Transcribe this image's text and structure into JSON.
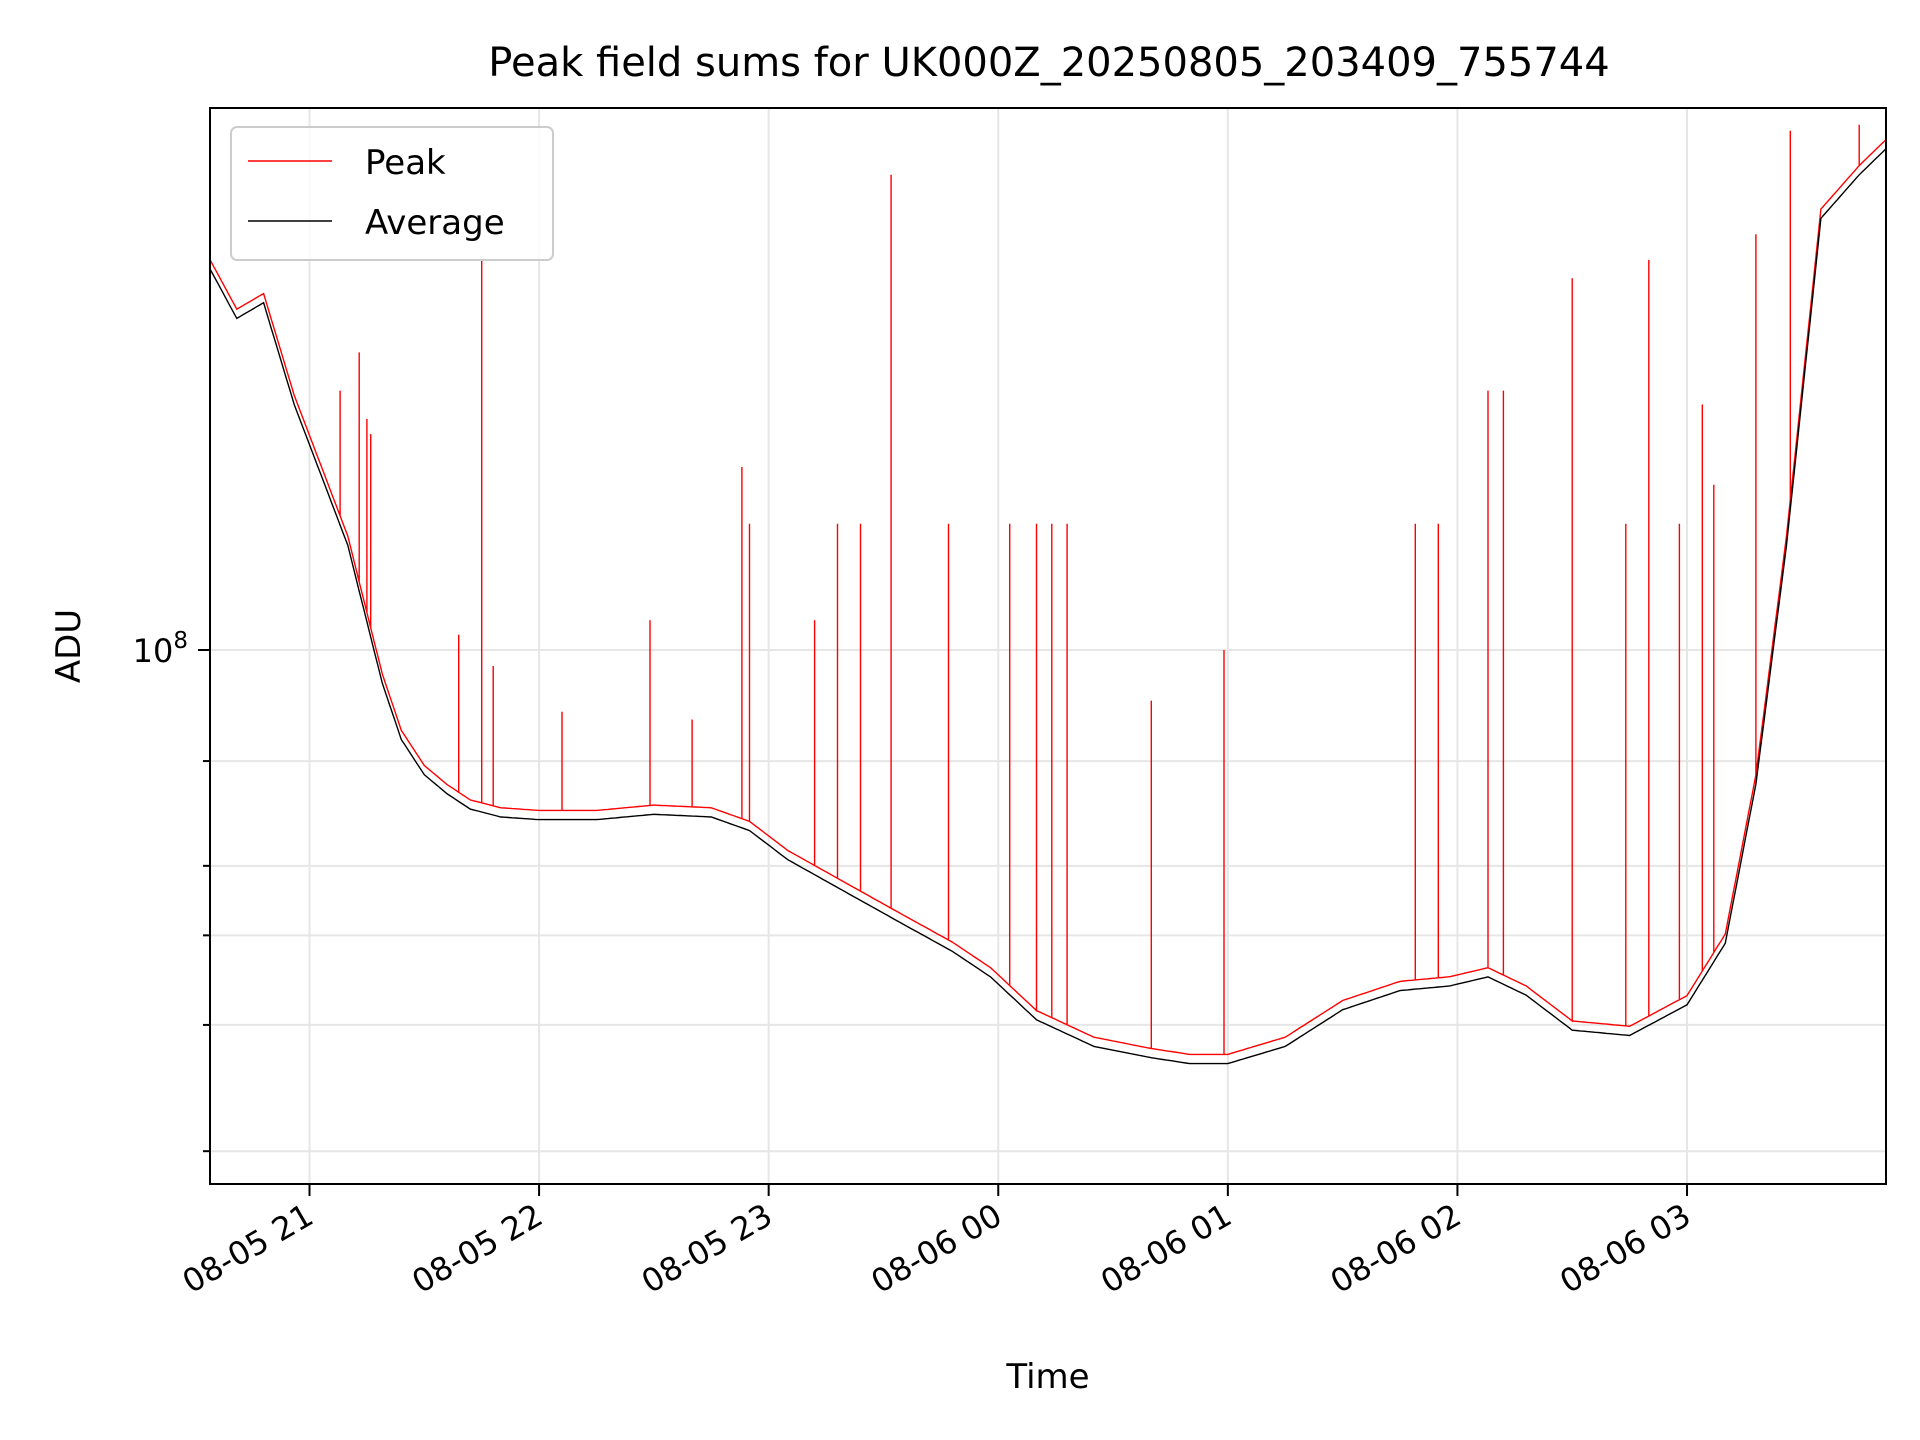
{
  "chart_data": {
    "type": "line",
    "title": "Peak field sums for UK000Z_20250805_203409_755744",
    "xlabel": "Time",
    "ylabel": "ADU",
    "y_scale": "log",
    "grid": true,
    "legend_position": "top-left",
    "xlim": [
      "2025-08-05 20:34",
      "2025-08-06 03:52"
    ],
    "ylim": [
      18000000,
      570000000
    ],
    "x_ticks": [
      "08-05 21",
      "08-05 22",
      "08-05 23",
      "08-06 00",
      "08-06 01",
      "08-06 02",
      "08-06 03"
    ],
    "x_tick_values": [
      "2025-08-05 21:00",
      "2025-08-05 22:00",
      "2025-08-05 23:00",
      "2025-08-06 00:00",
      "2025-08-06 01:00",
      "2025-08-06 02:00",
      "2025-08-06 03:00"
    ],
    "y_ticks": [
      {
        "value": 100000000,
        "base": "10",
        "exp": "8"
      }
    ],
    "y_minor_ticks": [
      70000000,
      50000000,
      40000000,
      30000000,
      20000000
    ],
    "series": [
      {
        "name": "Average",
        "color": "#000000",
        "x": [
          "2025-08-05 20:34",
          "2025-08-05 20:41",
          "2025-08-05 20:48",
          "2025-08-05 20:56",
          "2025-08-05 21:04",
          "2025-08-05 21:10",
          "2025-08-05 21:14",
          "2025-08-05 21:19",
          "2025-08-05 21:24",
          "2025-08-05 21:30",
          "2025-08-05 21:36",
          "2025-08-05 21:42",
          "2025-08-05 21:50",
          "2025-08-05 22:00",
          "2025-08-05 22:15",
          "2025-08-05 22:30",
          "2025-08-05 22:45",
          "2025-08-05 22:55",
          "2025-08-05 23:05",
          "2025-08-05 23:20",
          "2025-08-05 23:35",
          "2025-08-05 23:48",
          "2025-08-05 23:58",
          "2025-08-06 00:10",
          "2025-08-06 00:25",
          "2025-08-06 00:40",
          "2025-08-06 00:50",
          "2025-08-06 01:00",
          "2025-08-06 01:15",
          "2025-08-06 01:30",
          "2025-08-06 01:45",
          "2025-08-06 01:58",
          "2025-08-06 02:08",
          "2025-08-06 02:18",
          "2025-08-06 02:30",
          "2025-08-06 02:45",
          "2025-08-06 03:00",
          "2025-08-06 03:10",
          "2025-08-06 03:18",
          "2025-08-06 03:26",
          "2025-08-06 03:35",
          "2025-08-06 03:45",
          "2025-08-06 03:52"
        ],
        "y": [
          340000000,
          290000000,
          305000000,
          220000000,
          170000000,
          140000000,
          115000000,
          90000000,
          75000000,
          67000000,
          63000000,
          60000000,
          58500000,
          58000000,
          58000000,
          59000000,
          58500000,
          56000000,
          51000000,
          46000000,
          41500000,
          38000000,
          35000000,
          30500000,
          28000000,
          27000000,
          26500000,
          26500000,
          28000000,
          31500000,
          33500000,
          34000000,
          35000000,
          33000000,
          29500000,
          29000000,
          32000000,
          39000000,
          65000000,
          140000000,
          400000000,
          460000000,
          500000000
        ]
      },
      {
        "name": "Peak",
        "color": "#ff0000",
        "spikes": [
          {
            "x": "2025-08-05 21:08",
            "y": 230000000
          },
          {
            "x": "2025-08-05 21:13",
            "y": 260000000
          },
          {
            "x": "2025-08-05 21:15",
            "y": 210000000
          },
          {
            "x": "2025-08-05 21:16",
            "y": 200000000
          },
          {
            "x": "2025-08-05 21:39",
            "y": 105000000
          },
          {
            "x": "2025-08-05 21:45",
            "y": 350000000
          },
          {
            "x": "2025-08-05 21:48",
            "y": 95000000
          },
          {
            "x": "2025-08-05 22:06",
            "y": 82000000
          },
          {
            "x": "2025-08-05 22:29",
            "y": 110000000
          },
          {
            "x": "2025-08-05 22:40",
            "y": 80000000
          },
          {
            "x": "2025-08-05 22:53",
            "y": 180000000
          },
          {
            "x": "2025-08-05 22:55",
            "y": 150000000
          },
          {
            "x": "2025-08-05 23:12",
            "y": 110000000
          },
          {
            "x": "2025-08-05 23:18",
            "y": 150000000
          },
          {
            "x": "2025-08-05 23:24",
            "y": 150000000
          },
          {
            "x": "2025-08-05 23:32",
            "y": 460000000
          },
          {
            "x": "2025-08-05 23:47",
            "y": 150000000
          },
          {
            "x": "2025-08-06 00:03",
            "y": 150000000
          },
          {
            "x": "2025-08-06 00:10",
            "y": 150000000
          },
          {
            "x": "2025-08-06 00:14",
            "y": 150000000
          },
          {
            "x": "2025-08-06 00:18",
            "y": 150000000
          },
          {
            "x": "2025-08-06 00:40",
            "y": 85000000
          },
          {
            "x": "2025-08-06 00:59",
            "y": 100000000
          },
          {
            "x": "2025-08-06 01:49",
            "y": 150000000
          },
          {
            "x": "2025-08-06 01:55",
            "y": 150000000
          },
          {
            "x": "2025-08-06 02:08",
            "y": 230000000
          },
          {
            "x": "2025-08-06 02:12",
            "y": 230000000
          },
          {
            "x": "2025-08-06 02:30",
            "y": 330000000
          },
          {
            "x": "2025-08-06 02:44",
            "y": 150000000
          },
          {
            "x": "2025-08-06 02:50",
            "y": 350000000
          },
          {
            "x": "2025-08-06 02:58",
            "y": 150000000
          },
          {
            "x": "2025-08-06 03:04",
            "y": 220000000
          },
          {
            "x": "2025-08-06 03:07",
            "y": 170000000
          },
          {
            "x": "2025-08-06 03:18",
            "y": 380000000
          },
          {
            "x": "2025-08-06 03:27",
            "y": 530000000
          },
          {
            "x": "2025-08-06 03:45",
            "y": 540000000
          }
        ]
      }
    ]
  }
}
